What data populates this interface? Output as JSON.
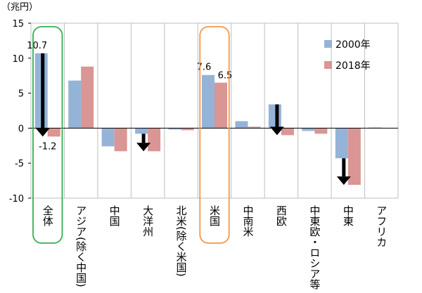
{
  "chart_data": {
    "type": "bar",
    "unit_label": "（兆円）",
    "categories": [
      "全体",
      "アジア(除く中国)",
      "中国",
      "大洋州",
      "北米(除く米国)",
      "米国",
      "中南米",
      "西欧",
      "中東欧・ロシア等",
      "中東",
      "アフリカ"
    ],
    "series": [
      {
        "name": "2000年",
        "color": "#95B3D7",
        "values": [
          10.7,
          6.8,
          -2.6,
          -0.8,
          -0.2,
          7.6,
          1.0,
          3.4,
          -0.4,
          -4.3,
          0.1
        ]
      },
      {
        "name": "2018年",
        "color": "#D99694",
        "values": [
          -1.2,
          8.8,
          -3.3,
          -3.3,
          -0.3,
          6.5,
          0.2,
          -1.0,
          -0.8,
          -8.1,
          0.0
        ]
      }
    ],
    "y_ticks": [
      15,
      10,
      5,
      0,
      -5,
      -10
    ],
    "ylim": [
      -10,
      15
    ],
    "grid": "vertical",
    "legend_position": "right",
    "data_labels": [
      {
        "text": "10.7",
        "category": 0,
        "series": 0
      },
      {
        "text": "-1.2",
        "category": 0,
        "series": 1
      },
      {
        "text": "7.6",
        "category": 5,
        "series": 0
      },
      {
        "text": "6.5",
        "category": 5,
        "series": 1
      }
    ],
    "arrows": [
      {
        "category": 0,
        "from": 10.7,
        "to": -1.2
      },
      {
        "category": 3,
        "from": -0.8,
        "to": -3.3
      },
      {
        "category": 7,
        "from": 3.4,
        "to": -1.0
      },
      {
        "category": 9,
        "from": -4.3,
        "to": -8.1
      }
    ],
    "highlights": [
      {
        "category": 0,
        "color": "#33B050"
      },
      {
        "category": 5,
        "color": "#F79646"
      }
    ]
  }
}
